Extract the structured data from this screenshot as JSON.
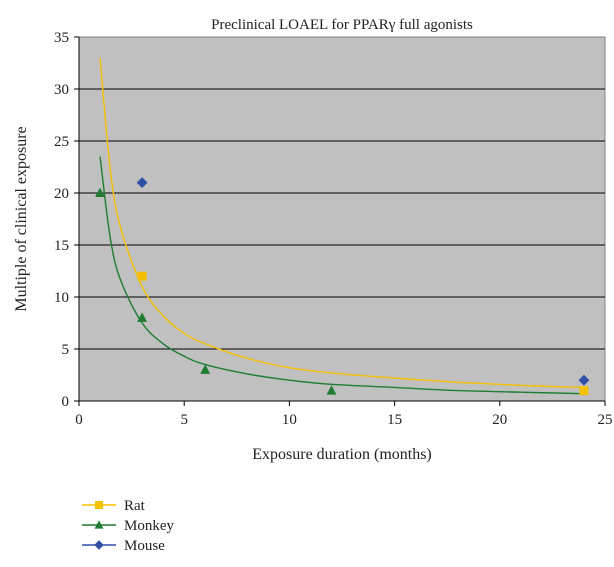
{
  "chart_data": {
    "type": "scatter",
    "title": "Preclinical LOAEL for PPARγ full agonists",
    "xlabel": "Exposure duration (months)",
    "ylabel": "Multiple of clinical exposure",
    "xlim": [
      0,
      25
    ],
    "ylim": [
      0,
      35
    ],
    "x_ticks": [
      0,
      5,
      10,
      15,
      20,
      25
    ],
    "y_ticks": [
      0,
      5,
      10,
      15,
      20,
      25,
      30,
      35
    ],
    "grid": "horizontal",
    "legend_position": "bottom-left",
    "plot_background": "#c0c0c0",
    "series": [
      {
        "name": "Rat",
        "color": "#f5c000",
        "marker": "square",
        "points": [
          {
            "x": 3,
            "y": 12
          },
          {
            "x": 24,
            "y": 1
          }
        ],
        "trendline": [
          {
            "x": 1,
            "y": 33
          },
          {
            "x": 1.5,
            "y": 22
          },
          {
            "x": 2,
            "y": 16.5
          },
          {
            "x": 3,
            "y": 11
          },
          {
            "x": 4,
            "y": 8.2
          },
          {
            "x": 5,
            "y": 6.5
          },
          {
            "x": 6,
            "y": 5.5
          },
          {
            "x": 8,
            "y": 4.1
          },
          {
            "x": 10,
            "y": 3.2
          },
          {
            "x": 12,
            "y": 2.7
          },
          {
            "x": 15,
            "y": 2.2
          },
          {
            "x": 18,
            "y": 1.8
          },
          {
            "x": 21,
            "y": 1.5
          },
          {
            "x": 24,
            "y": 1.3
          }
        ]
      },
      {
        "name": "Monkey",
        "color": "#1e7d32",
        "marker": "triangle",
        "points": [
          {
            "x": 1,
            "y": 20
          },
          {
            "x": 3,
            "y": 8
          },
          {
            "x": 6,
            "y": 3
          },
          {
            "x": 12,
            "y": 1
          }
        ],
        "trendline": [
          {
            "x": 1,
            "y": 23.5
          },
          {
            "x": 1.5,
            "y": 15.5
          },
          {
            "x": 2,
            "y": 11.5
          },
          {
            "x": 3,
            "y": 7.5
          },
          {
            "x": 4,
            "y": 5.5
          },
          {
            "x": 5,
            "y": 4.3
          },
          {
            "x": 6,
            "y": 3.5
          },
          {
            "x": 8,
            "y": 2.6
          },
          {
            "x": 10,
            "y": 2.0
          },
          {
            "x": 12,
            "y": 1.6
          },
          {
            "x": 15,
            "y": 1.3
          },
          {
            "x": 18,
            "y": 1.0
          },
          {
            "x": 21,
            "y": 0.85
          },
          {
            "x": 24,
            "y": 0.7
          }
        ]
      },
      {
        "name": "Mouse",
        "color": "#2f4fa8",
        "marker": "diamond",
        "points": [
          {
            "x": 3,
            "y": 21
          },
          {
            "x": 24,
            "y": 2
          }
        ]
      }
    ]
  }
}
